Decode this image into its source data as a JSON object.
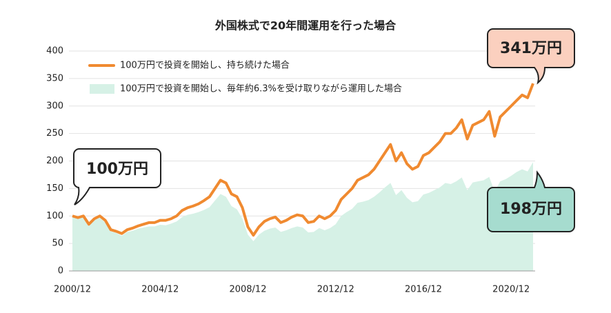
{
  "chart_data": {
    "type": "line",
    "title": "外国株式で20年間運用を行った場合",
    "x": [
      "2000/12",
      "2001/03",
      "2001/06",
      "2001/09",
      "2001/12",
      "2002/03",
      "2002/06",
      "2002/09",
      "2002/12",
      "2003/03",
      "2003/06",
      "2003/09",
      "2003/12",
      "2004/03",
      "2004/06",
      "2004/09",
      "2004/12",
      "2005/03",
      "2005/06",
      "2005/09",
      "2005/12",
      "2006/03",
      "2006/06",
      "2006/09",
      "2006/12",
      "2007/03",
      "2007/06",
      "2007/09",
      "2007/12",
      "2008/03",
      "2008/06",
      "2008/09",
      "2008/12",
      "2009/03",
      "2009/06",
      "2009/09",
      "2009/12",
      "2010/03",
      "2010/06",
      "2010/09",
      "2010/12",
      "2011/03",
      "2011/06",
      "2011/09",
      "2011/12",
      "2012/03",
      "2012/06",
      "2012/09",
      "2012/12",
      "2013/03",
      "2013/06",
      "2013/09",
      "2013/12",
      "2014/03",
      "2014/06",
      "2014/09",
      "2014/12",
      "2015/03",
      "2015/06",
      "2015/09",
      "2015/12",
      "2016/03",
      "2016/06",
      "2016/09",
      "2016/12",
      "2017/03",
      "2017/06",
      "2017/09",
      "2017/12",
      "2018/03",
      "2018/06",
      "2018/09",
      "2018/12",
      "2019/03",
      "2019/06",
      "2019/09",
      "2019/12",
      "2020/03",
      "2020/06",
      "2020/09",
      "2020/12",
      "2021/03",
      "2021/06",
      "2021/09",
      "2021/12"
    ],
    "series": [
      {
        "name": "100万円で投資を開始し、持ち続けた場合",
        "type": "line",
        "color": "#f08a30",
        "values": [
          100,
          97,
          100,
          85,
          95,
          100,
          92,
          75,
          72,
          68,
          75,
          78,
          82,
          85,
          88,
          88,
          92,
          92,
          95,
          100,
          110,
          115,
          118,
          122,
          128,
          135,
          150,
          165,
          160,
          140,
          135,
          115,
          80,
          65,
          80,
          90,
          95,
          98,
          88,
          92,
          98,
          102,
          100,
          88,
          90,
          100,
          95,
          100,
          110,
          130,
          140,
          150,
          165,
          170,
          175,
          185,
          200,
          215,
          230,
          200,
          215,
          195,
          185,
          190,
          210,
          215,
          225,
          235,
          250,
          250,
          260,
          275,
          240,
          265,
          270,
          275,
          290,
          245,
          280,
          290,
          300,
          310,
          320,
          315,
          341
        ]
      },
      {
        "name": "100万円で投資を開始し、毎年約6.3%を受け取りながら運用した場合",
        "type": "area",
        "color": "#d6f1e6",
        "values": [
          100,
          96,
          98,
          84,
          93,
          97,
          88,
          72,
          69,
          64,
          71,
          73,
          77,
          79,
          81,
          81,
          84,
          83,
          86,
          90,
          98,
          102,
          104,
          107,
          111,
          116,
          128,
          140,
          135,
          118,
          112,
          95,
          66,
          54,
          66,
          73,
          77,
          79,
          71,
          74,
          78,
          81,
          79,
          70,
          71,
          78,
          74,
          78,
          85,
          100,
          107,
          113,
          124,
          126,
          129,
          135,
          143,
          152,
          160,
          138,
          147,
          133,
          125,
          127,
          139,
          142,
          147,
          152,
          160,
          158,
          163,
          170,
          147,
          161,
          163,
          165,
          171,
          144,
          163,
          167,
          173,
          180,
          185,
          181,
          198
        ]
      }
    ],
    "xticks": [
      "2000/12",
      "2004/12",
      "2008/12",
      "2012/12",
      "2016/12",
      "2020/12"
    ],
    "xlim": [
      "2000/12",
      "2021/12"
    ],
    "ylim": [
      0,
      400
    ],
    "yticks": [
      0,
      50,
      100,
      150,
      200,
      250,
      300,
      350,
      400
    ],
    "grid": true,
    "annotations": [
      "100万円",
      "341万円",
      "198万円"
    ]
  }
}
